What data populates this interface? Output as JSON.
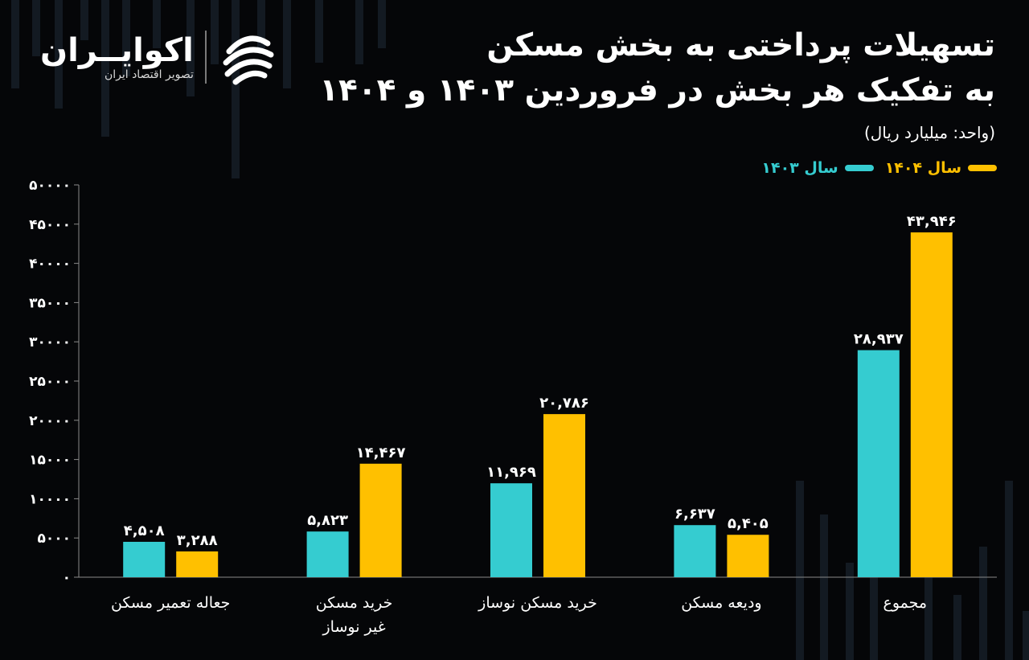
{
  "header": {
    "title_line1": "تسهیلات پرداختی به بخش مسکن",
    "title_line2": "به تفکیک هر بخش در فروردین ۱۴۰۳ و ۱۴۰۴",
    "unit": "(واحد: میلیارد ریال)"
  },
  "logo": {
    "name": "اکوایــران",
    "tagline": "تصویر اقتصاد ایران",
    "icon": "ecoiran-logo-icon"
  },
  "legend": {
    "s1404": "سال ۱۴۰۴",
    "s1403": "سال ۱۴۰۳"
  },
  "colors": {
    "series_1403": "#35CCD0",
    "series_1404": "#FFC000",
    "background": "#050608",
    "axis": "#8a8a8a"
  },
  "chart_data": {
    "type": "bar",
    "ylim": [
      0,
      50000
    ],
    "y_ticks": [
      "۰",
      "۵۰۰۰",
      "۱۰۰۰۰",
      "۱۵۰۰۰",
      "۲۰۰۰۰",
      "۲۵۰۰۰",
      "۳۰۰۰۰",
      "۳۵۰۰۰",
      "۴۰۰۰۰",
      "۴۵۰۰۰",
      "۵۰۰۰۰"
    ],
    "categories": [
      [
        "جعاله تعمیر مسکن"
      ],
      [
        "خرید مسکن",
        "غیر نوساز"
      ],
      [
        "خرید مسکن نوساز"
      ],
      [
        "ودیعه مسکن"
      ],
      [
        "مجموع"
      ]
    ],
    "series": [
      {
        "name": "سال ۱۴۰۳",
        "values": [
          4508,
          5823,
          11969,
          6637,
          28937
        ],
        "labels": [
          "۴,۵۰۸",
          "۵,۸۲۳",
          "۱۱,۹۶۹",
          "۶,۶۳۷",
          "۲۸,۹۳۷"
        ]
      },
      {
        "name": "سال ۱۴۰۴",
        "values": [
          3288,
          14467,
          20786,
          5405,
          43946
        ],
        "labels": [
          "۳,۲۸۸",
          "۱۴,۴۶۷",
          "۲۰,۷۸۶",
          "۵,۴۰۵",
          "۴۳,۹۴۶"
        ]
      }
    ]
  }
}
